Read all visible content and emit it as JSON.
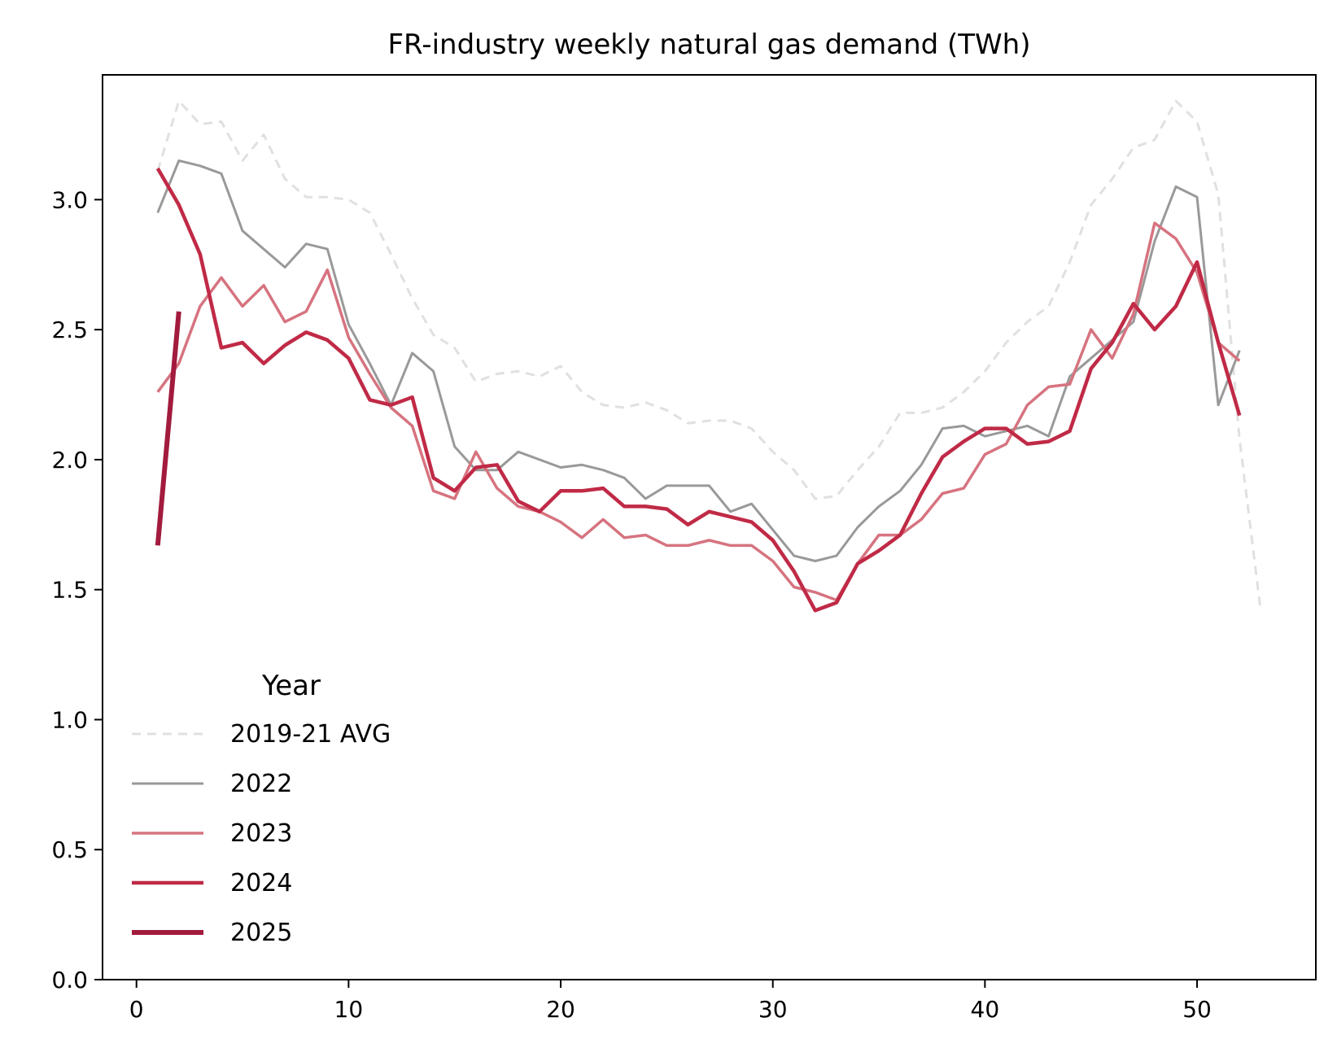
{
  "chart_data": {
    "type": "line",
    "title": "FR-industry weekly natural gas demand (TWh)",
    "xlabel": "",
    "ylabel": "",
    "xlim": [
      -1.6,
      55.6
    ],
    "ylim": [
      0,
      3.48
    ],
    "xticks": [
      0,
      10,
      20,
      30,
      40,
      50
    ],
    "xtick_labels": [
      "0",
      "10",
      "20",
      "30",
      "40",
      "50"
    ],
    "yticks": [
      0,
      0.5,
      1.0,
      1.5,
      2.0,
      2.5,
      3.0
    ],
    "ytick_labels": [
      "0.0",
      "0.5",
      "1.0",
      "1.5",
      "2.0",
      "2.5",
      "3.0"
    ],
    "grid": false,
    "legend": {
      "title": "Year",
      "placement": "lower-left"
    },
    "series": [
      {
        "name": "2019-21 AVG",
        "color": "#e0e0e0",
        "style": "dashed",
        "width": 3,
        "x": [
          1,
          2,
          3,
          4,
          5,
          6,
          7,
          8,
          9,
          10,
          11,
          12,
          13,
          14,
          15,
          16,
          17,
          18,
          19,
          20,
          21,
          22,
          23,
          24,
          25,
          26,
          27,
          28,
          29,
          30,
          31,
          32,
          33,
          34,
          35,
          36,
          37,
          38,
          39,
          40,
          41,
          42,
          43,
          44,
          45,
          46,
          47,
          48,
          49,
          50,
          51,
          52,
          53
        ],
        "values": [
          3.11,
          3.38,
          3.29,
          3.3,
          3.15,
          3.25,
          3.08,
          3.01,
          3.01,
          3.0,
          2.95,
          2.79,
          2.62,
          2.48,
          2.43,
          2.3,
          2.33,
          2.34,
          2.32,
          2.36,
          2.26,
          2.21,
          2.2,
          2.22,
          2.19,
          2.14,
          2.15,
          2.15,
          2.12,
          2.03,
          1.96,
          1.85,
          1.86,
          1.96,
          2.05,
          2.18,
          2.18,
          2.2,
          2.26,
          2.34,
          2.45,
          2.53,
          2.59,
          2.76,
          2.98,
          3.08,
          3.2,
          3.23,
          3.38,
          3.3,
          3.02,
          2.08,
          1.42
        ]
      },
      {
        "name": "2022",
        "color": "#999999",
        "style": "solid",
        "width": 3,
        "x": [
          1,
          2,
          3,
          4,
          5,
          6,
          7,
          8,
          9,
          10,
          11,
          12,
          13,
          14,
          15,
          16,
          17,
          18,
          19,
          20,
          21,
          22,
          23,
          24,
          25,
          26,
          27,
          28,
          29,
          30,
          31,
          32,
          33,
          34,
          35,
          36,
          37,
          38,
          39,
          40,
          41,
          42,
          43,
          44,
          45,
          46,
          47,
          48,
          49,
          50,
          51,
          52
        ],
        "values": [
          2.95,
          3.15,
          3.13,
          3.1,
          2.88,
          2.81,
          2.74,
          2.83,
          2.81,
          2.52,
          2.37,
          2.21,
          2.41,
          2.34,
          2.05,
          1.96,
          1.96,
          2.03,
          2.0,
          1.97,
          1.98,
          1.96,
          1.93,
          1.85,
          1.9,
          1.9,
          1.9,
          1.8,
          1.83,
          1.73,
          1.63,
          1.61,
          1.63,
          1.74,
          1.82,
          1.88,
          1.98,
          2.12,
          2.13,
          2.09,
          2.11,
          2.13,
          2.09,
          2.32,
          2.39,
          2.46,
          2.53,
          2.84,
          3.05,
          3.01,
          2.21,
          2.42
        ]
      },
      {
        "name": "2023",
        "color": "#d6737f",
        "style": "solid",
        "width": 3.5,
        "x": [
          1,
          2,
          3,
          4,
          5,
          6,
          7,
          8,
          9,
          10,
          11,
          12,
          13,
          14,
          15,
          16,
          17,
          18,
          19,
          20,
          21,
          22,
          23,
          24,
          25,
          26,
          27,
          28,
          29,
          30,
          31,
          32,
          33,
          34,
          35,
          36,
          37,
          38,
          39,
          40,
          41,
          42,
          43,
          44,
          45,
          46,
          47,
          48,
          49,
          50,
          51,
          52
        ],
        "values": [
          2.26,
          2.37,
          2.59,
          2.7,
          2.59,
          2.67,
          2.53,
          2.57,
          2.73,
          2.47,
          2.33,
          2.2,
          2.13,
          1.88,
          1.85,
          2.03,
          1.89,
          1.82,
          1.8,
          1.76,
          1.7,
          1.77,
          1.7,
          1.71,
          1.67,
          1.67,
          1.69,
          1.67,
          1.67,
          1.61,
          1.51,
          1.49,
          1.46,
          1.6,
          1.71,
          1.71,
          1.77,
          1.87,
          1.89,
          2.02,
          2.06,
          2.21,
          2.28,
          2.29,
          2.5,
          2.39,
          2.56,
          2.91,
          2.85,
          2.72,
          2.45,
          2.38
        ]
      },
      {
        "name": "2024",
        "color": "#c02a46",
        "style": "solid",
        "width": 4.5,
        "x": [
          1,
          2,
          3,
          4,
          5,
          6,
          7,
          8,
          9,
          10,
          11,
          12,
          13,
          14,
          15,
          16,
          17,
          18,
          19,
          20,
          21,
          22,
          23,
          24,
          25,
          26,
          27,
          28,
          29,
          30,
          31,
          32,
          33,
          34,
          35,
          36,
          37,
          38,
          39,
          40,
          41,
          42,
          43,
          44,
          45,
          46,
          47,
          48,
          49,
          50,
          51,
          52
        ],
        "values": [
          3.12,
          2.98,
          2.79,
          2.43,
          2.45,
          2.37,
          2.44,
          2.49,
          2.46,
          2.39,
          2.23,
          2.21,
          2.24,
          1.93,
          1.88,
          1.97,
          1.98,
          1.84,
          1.8,
          1.88,
          1.88,
          1.89,
          1.82,
          1.82,
          1.81,
          1.75,
          1.8,
          1.78,
          1.76,
          1.69,
          1.57,
          1.42,
          1.45,
          1.6,
          1.65,
          1.71,
          1.87,
          2.01,
          2.07,
          2.12,
          2.12,
          2.06,
          2.07,
          2.11,
          2.35,
          2.45,
          2.6,
          2.5,
          2.59,
          2.76,
          2.45,
          2.17
        ]
      },
      {
        "name": "2025",
        "color": "#a21b3d",
        "style": "solid",
        "width": 6,
        "x": [
          1,
          2
        ],
        "values": [
          1.67,
          2.57
        ]
      }
    ]
  }
}
